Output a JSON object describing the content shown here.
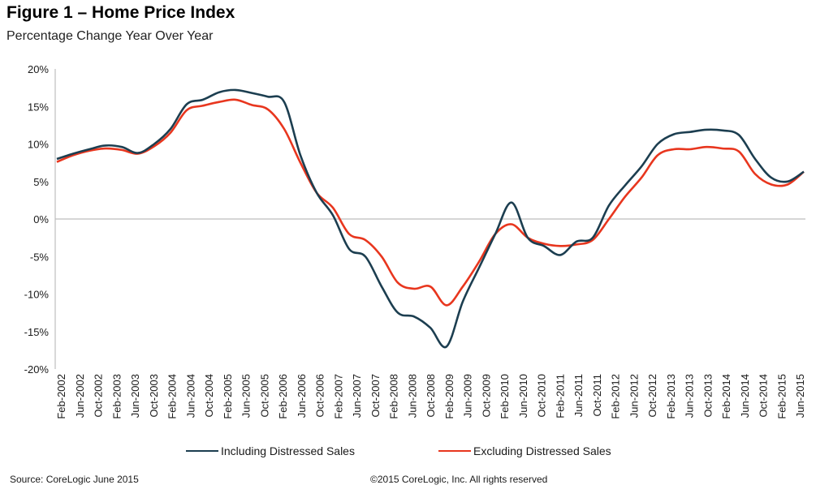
{
  "header": {
    "title": "Figure 1 – Home Price Index",
    "subtitle": "Percentage Change Year Over Year"
  },
  "footer": {
    "source": "Source: CoreLogic  June 2015",
    "copyright": "©2015 CoreLogic, Inc. All rights reserved"
  },
  "chart_data": {
    "type": "line",
    "title": "Figure 1 – Home Price Index",
    "subtitle": "Percentage Change Year Over Year",
    "ylim": [
      -20,
      20
    ],
    "y_ticks": [
      20,
      15,
      10,
      5,
      0,
      -5,
      -10,
      -15,
      -20
    ],
    "y_tick_labels": [
      "20%",
      "15%",
      "10%",
      "5%",
      "0%",
      "-5%",
      "-10%",
      "-15%",
      "-20%"
    ],
    "x_tick_labels": [
      "Feb-2002",
      "Jun-2002",
      "Oct-2002",
      "Feb-2003",
      "Jun-2003",
      "Oct-2003",
      "Feb-2004",
      "Jun-2004",
      "Oct-2004",
      "Feb-2005",
      "Jun-2005",
      "Oct-2005",
      "Feb-2006",
      "Jun-2006",
      "Oct-2006",
      "Feb-2007",
      "Jun-2007",
      "Oct-2007",
      "Feb-2008",
      "Jun-2008",
      "Oct-2008",
      "Feb-2009",
      "Jun-2009",
      "Oct-2009",
      "Feb-2010",
      "Jun-2010",
      "Oct-2010",
      "Feb-2011",
      "Jun-2011",
      "Oct-2011",
      "Feb-2012",
      "Jun-2012",
      "Oct-2012",
      "Feb-2013",
      "Jun-2013",
      "Oct-2013",
      "Feb-2014",
      "Jun-2014",
      "Oct-2014",
      "Feb-2015",
      "Jun-2015"
    ],
    "grid": false,
    "legend_position": "bottom-center",
    "series": [
      {
        "name": "Including Distressed Sales",
        "color": "#1c3e50",
        "values": [
          8.0,
          8.7,
          9.3,
          9.8,
          9.6,
          8.8,
          10.0,
          12.0,
          15.3,
          15.9,
          16.9,
          17.2,
          16.8,
          16.3,
          15.6,
          8.5,
          3.5,
          0.5,
          -4.0,
          -5.0,
          -9.0,
          -12.5,
          -13.0,
          -14.5,
          -17.0,
          -11.0,
          -6.5,
          -2.0,
          2.2,
          -2.5,
          -3.6,
          -4.8,
          -3.0,
          -2.5,
          1.8,
          4.5,
          7.0,
          10.0,
          11.3,
          11.6,
          11.9,
          11.8,
          11.2,
          8.0,
          5.5,
          5.0,
          6.3
        ]
      },
      {
        "name": "Excluding Distressed Sales",
        "color": "#e8361e",
        "values": [
          7.6,
          8.5,
          9.1,
          9.4,
          9.2,
          8.7,
          9.7,
          11.5,
          14.5,
          15.1,
          15.6,
          15.9,
          15.2,
          14.6,
          12.0,
          7.5,
          3.5,
          1.5,
          -2.0,
          -2.8,
          -5.0,
          -8.5,
          -9.3,
          -9.0,
          -11.5,
          -9.0,
          -5.7,
          -2.0,
          -0.7,
          -2.5,
          -3.3,
          -3.6,
          -3.4,
          -2.8,
          0.0,
          3.0,
          5.5,
          8.5,
          9.3,
          9.3,
          9.6,
          9.4,
          9.0,
          6.0,
          4.6,
          4.6,
          6.3
        ]
      }
    ]
  }
}
